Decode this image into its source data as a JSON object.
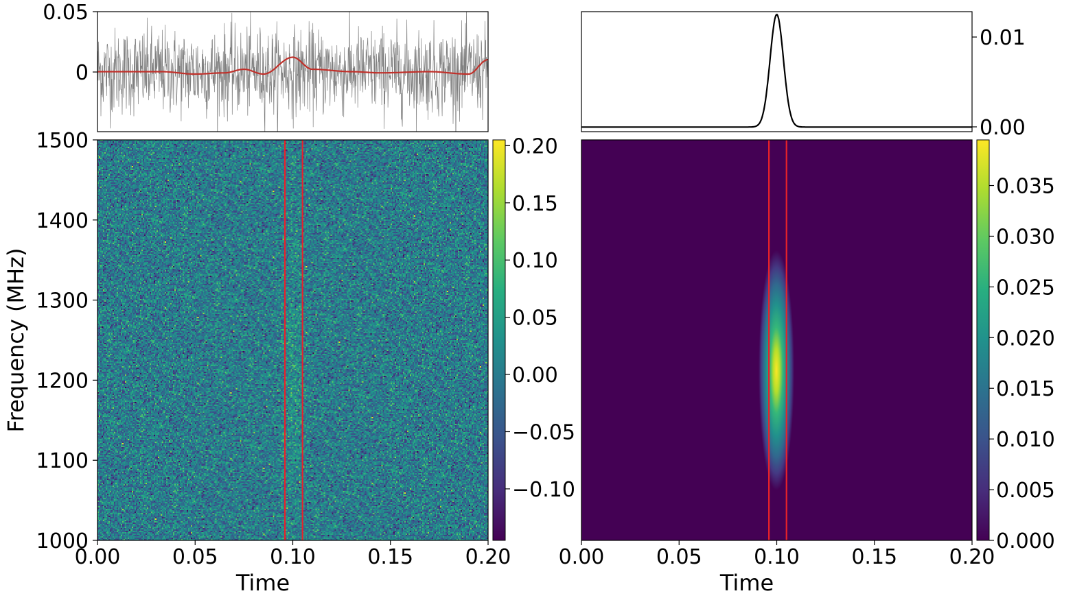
{
  "figure": {
    "left_panel": {
      "timeseries": {
        "ylim": [
          -0.05,
          0.05
        ],
        "yticks": [
          "0.05",
          "0"
        ],
        "series": [
          {
            "kind": "noisy-timeseries",
            "color": "#808080"
          },
          {
            "kind": "smoothed",
            "color": "#c0302a"
          }
        ]
      },
      "waterfall": {
        "xlabel": "Time",
        "ylabel": "Frequency (MHz)",
        "xlim": [
          0.0,
          0.2
        ],
        "ylim": [
          1000,
          1500
        ],
        "xticks": [
          "0.00",
          "0.05",
          "0.10",
          "0.15",
          "0.20"
        ],
        "yticks": [
          "1000",
          "1100",
          "1200",
          "1300",
          "1400",
          "1500"
        ],
        "colormap": "viridis",
        "markers": [
          0.096,
          0.105
        ],
        "marker_color": "#e8222a"
      },
      "colorbar": {
        "range": [
          -0.145,
          0.205
        ],
        "ticks": [
          "0.20",
          "0.15",
          "0.10",
          "0.05",
          "0.00",
          "−0.05",
          "−0.10"
        ]
      }
    },
    "right_panel": {
      "profile": {
        "ylim": [
          -0.0005,
          0.0125
        ],
        "yticks": [
          "0.01",
          "0.00"
        ],
        "line_color": "#000000"
      },
      "waterfall": {
        "xlabel": "Time",
        "xlim": [
          0.0,
          0.2
        ],
        "xticks": [
          "0.00",
          "0.05",
          "0.10",
          "0.15",
          "0.20"
        ],
        "colormap": "viridis",
        "markers": [
          0.096,
          0.105
        ],
        "marker_color": "#e8222a"
      },
      "colorbar": {
        "range": [
          0.0,
          0.0395
        ],
        "ticks": [
          "0.035",
          "0.030",
          "0.025",
          "0.020",
          "0.015",
          "0.010",
          "0.005",
          "0.000"
        ]
      }
    }
  },
  "chart_data": [
    {
      "type": "line",
      "title": "",
      "xlim": [
        0.0,
        0.2
      ],
      "ylim": [
        -0.05,
        0.05
      ],
      "series": [
        {
          "description": "noisy time series",
          "x": [
            0.0,
            0.05,
            0.1,
            0.15,
            0.2
          ],
          "y": [
            0.0,
            0.0,
            0.0,
            0.0,
            0.0
          ]
        },
        {
          "description": "smoothed time series",
          "x": [
            0.0,
            0.033,
            0.05,
            0.065,
            0.075,
            0.085,
            0.1,
            0.11,
            0.13,
            0.145,
            0.17,
            0.19,
            0.2
          ],
          "y": [
            0.0,
            0.0,
            -0.002,
            -0.001,
            0.002,
            -0.002,
            0.012,
            0.002,
            0.0,
            -0.001,
            0.0,
            -0.002,
            0.01
          ]
        }
      ]
    },
    {
      "type": "heatmap",
      "xlabel": "Time",
      "ylabel": "Frequency (MHz)",
      "xlim": [
        0.0,
        0.2
      ],
      "ylim": [
        1000,
        1500
      ],
      "colorbar_range": [
        -0.145,
        0.205
      ],
      "note_values": "noise field with weak burst near t=0.10"
    },
    {
      "type": "line",
      "xlim": [
        0.0,
        0.2
      ],
      "ylim": [
        -0.0005,
        0.0125
      ],
      "series": [
        {
          "x": [
            0.0,
            0.09,
            0.095,
            0.1,
            0.105,
            0.11,
            0.2
          ],
          "y": [
            0.0,
            0.0001,
            0.004,
            0.0122,
            0.004,
            0.0001,
            0.0
          ]
        }
      ]
    },
    {
      "type": "heatmap",
      "xlabel": "Time",
      "xlim": [
        0.0,
        0.2
      ],
      "ylim": [
        1000,
        1500
      ],
      "colorbar_range": [
        0.0,
        0.0395
      ],
      "peak": {
        "time": 0.1,
        "frequency": 1210,
        "value": 0.0395
      }
    }
  ]
}
